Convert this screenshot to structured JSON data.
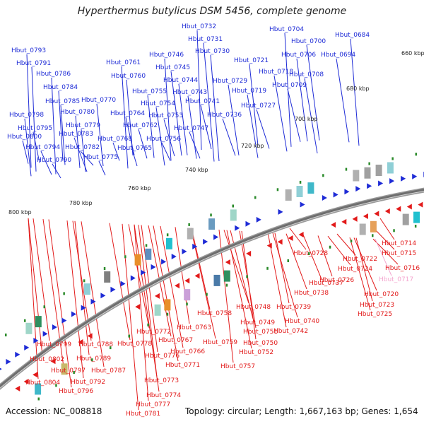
{
  "title": "Hyperthermus butylicus DSM 5456, complete genome",
  "footer": {
    "accession": "Accession: NC_008818",
    "info": "Topology: circular; Length: 1,667,163 bp; Genes: 1,654"
  },
  "colors": {
    "forward": "#1e2bd6",
    "reverse": "#e21a1a",
    "highlight": "#f4a6cf",
    "tick": "#2a8a2a",
    "backbone": "#6e6e6e"
  },
  "scale_labels": [
    {
      "text": "660 kbp"
    },
    {
      "text": "680 kbp"
    },
    {
      "text": "700 kbp"
    },
    {
      "text": "720 kbp"
    },
    {
      "text": "740 kbp"
    },
    {
      "text": "760 kbp"
    },
    {
      "text": "780 kbp"
    },
    {
      "text": "800 kbp"
    }
  ],
  "forward_genes": [
    "Hbut_0732",
    "Hbut_0704",
    "Hbut_0684",
    "Hbut_0731",
    "Hbut_0700",
    "Hbut_0793",
    "Hbut_0746",
    "Hbut_0730",
    "Hbut_0706",
    "Hbut_0694",
    "Hbut_0791",
    "Hbut_0761",
    "Hbut_0721",
    "Hbut_0745",
    "Hbut_0718",
    "Hbut_0786",
    "Hbut_0760",
    "Hbut_0744",
    "Hbut_0729",
    "Hbut_0708",
    "Hbut_0784",
    "Hbut_0755",
    "Hbut_0743",
    "Hbut_0719",
    "Hbut_0709",
    "Hbut_0785",
    "Hbut_0770",
    "Hbut_0754",
    "Hbut_0741",
    "Hbut_0727",
    "Hbut_0780",
    "Hbut_0798",
    "Hbut_0764",
    "Hbut_0753",
    "Hbut_0736",
    "Hbut_0779",
    "Hbut_0795",
    "Hbut_0762",
    "Hbut_0747",
    "Hbut_0783",
    "Hbut_0800",
    "Hbut_0768",
    "Hbut_0756",
    "Hbut_0794",
    "Hbut_0782",
    "Hbut_0765",
    "Hbut_0775",
    "Hbut_0790"
  ],
  "reverse_genes": [
    "Hbut_0714",
    "Hbut_0728",
    "Hbut_0722",
    "Hbut_0715",
    "Hbut_0724",
    "Hbut_0716",
    "Hbut_0726",
    "Hbut_0717",
    "Hbut_0737",
    "Hbut_0738",
    "Hbut_0720",
    "Hbut_0748",
    "Hbut_0739",
    "Hbut_0723",
    "Hbut_0758",
    "Hbut_0725",
    "Hbut_0749",
    "Hbut_0740",
    "Hbut_0763",
    "Hbut_0751",
    "Hbut_0742",
    "Hbut_0772",
    "Hbut_0767",
    "Hbut_0759",
    "Hbut_0750",
    "Hbut_0799",
    "Hbut_0788",
    "Hbut_0778",
    "Hbut_0766",
    "Hbut_0752",
    "Hbut_0789",
    "Hbut_0776",
    "Hbut_0802",
    "Hbut_0797",
    "Hbut_0787",
    "Hbut_0771",
    "Hbut_0757",
    "Hbut_0792",
    "Hbut_0773",
    "Hbut_0804",
    "Hbut_0796",
    "Hbut_0774",
    "Hbut_0777",
    "Hbut_0781"
  ]
}
